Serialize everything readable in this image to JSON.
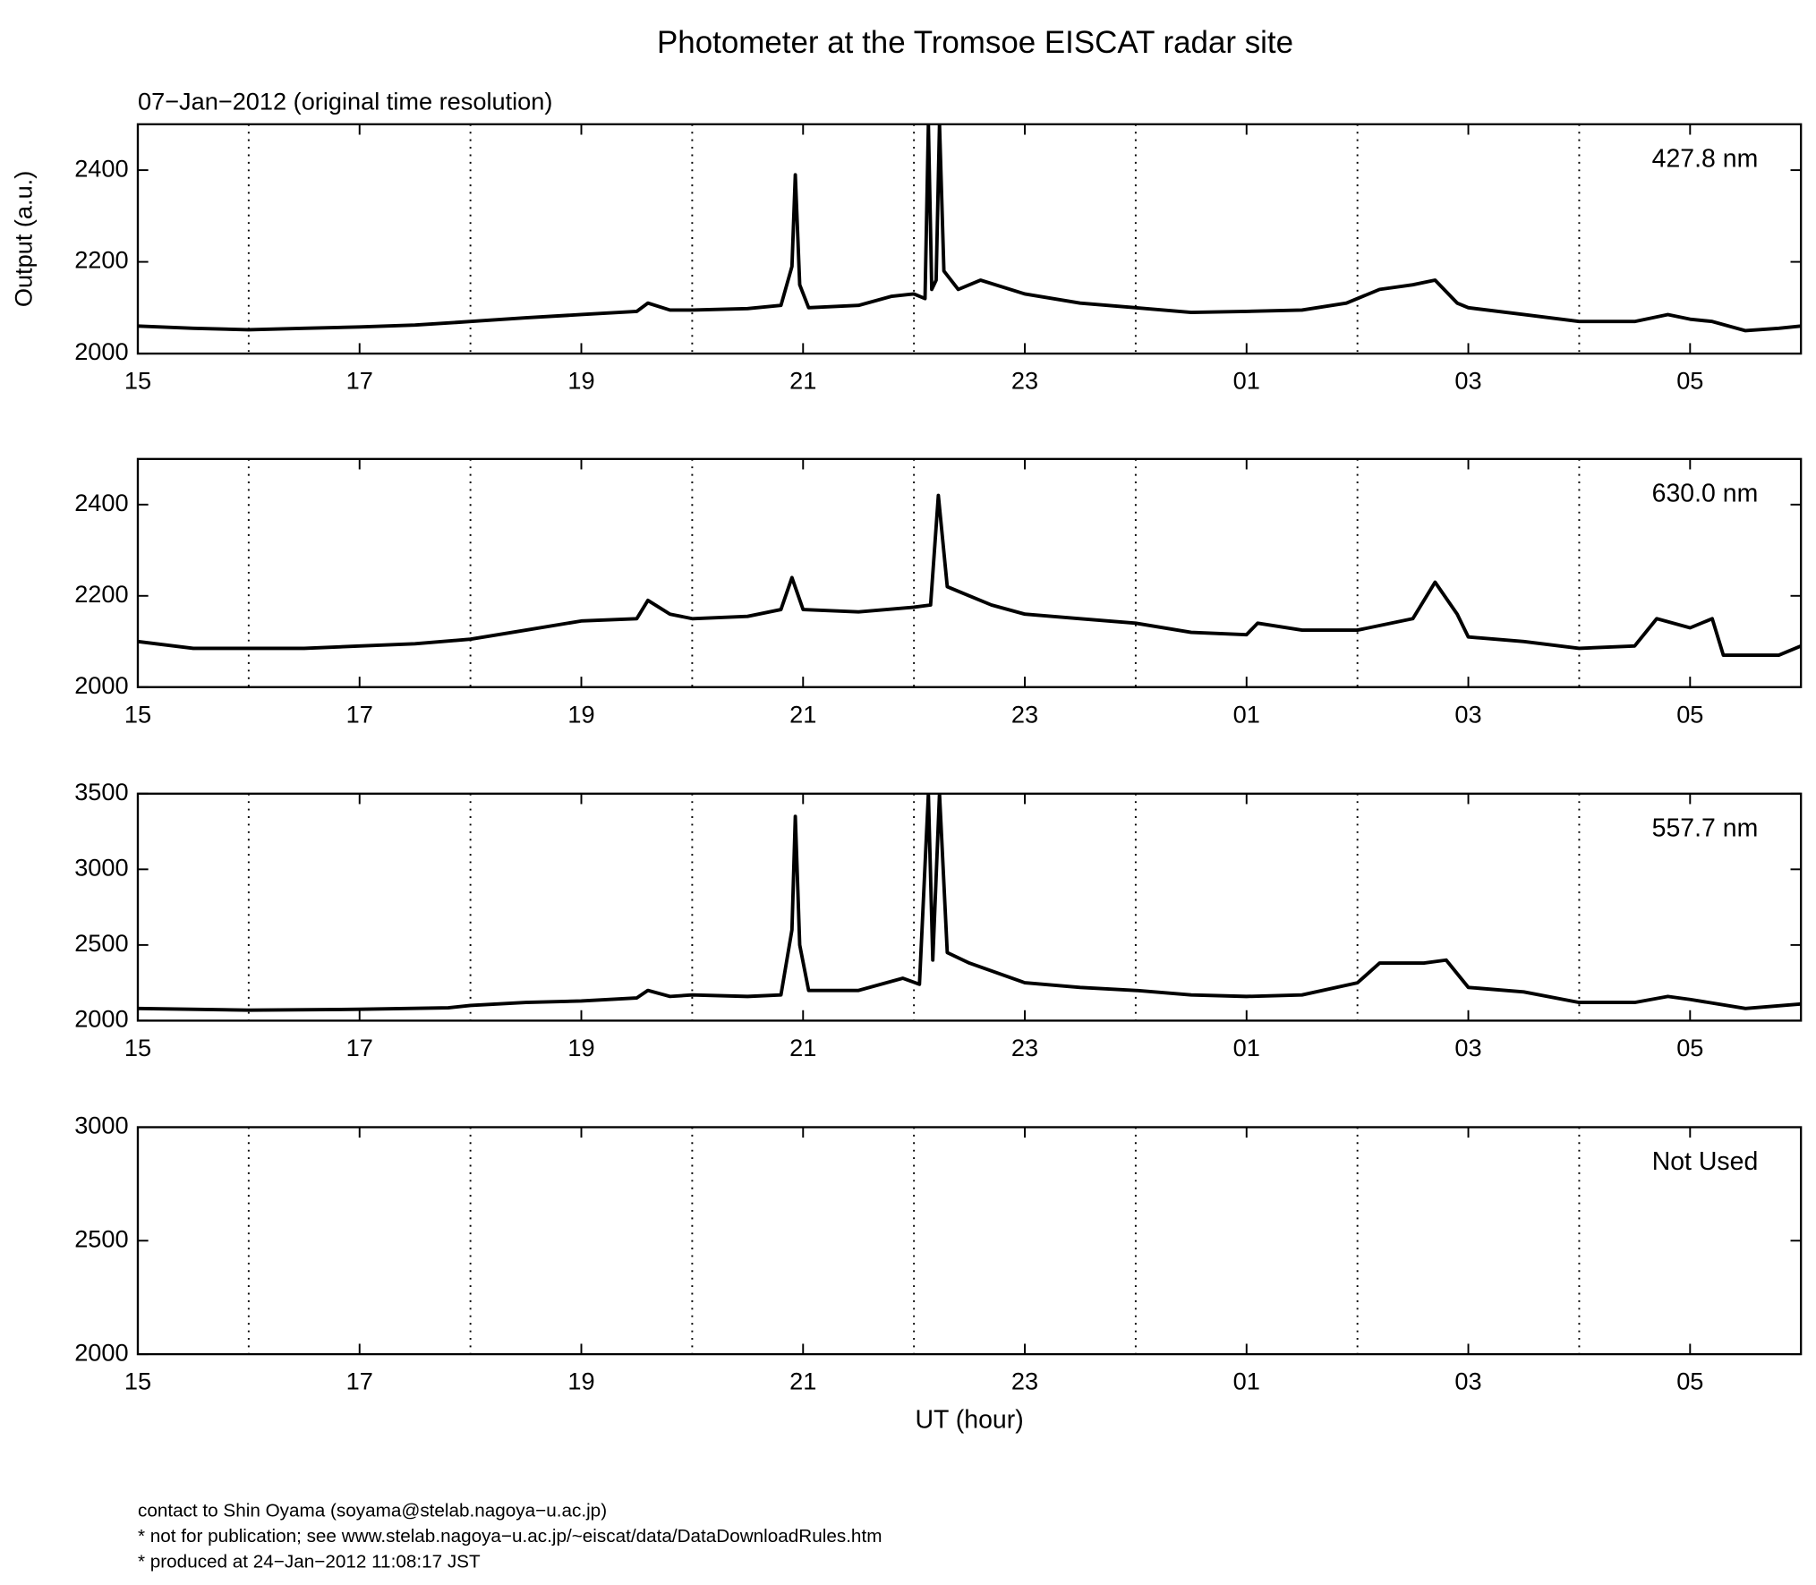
{
  "title": "Photometer at the Tromsoe EISCAT radar site",
  "subtitle": "07−Jan−2012 (original time resolution)",
  "footer": [
    "contact to Shin Oyama (soyama@stelab.nagoya−u.ac.jp)",
    "* not for publication; see www.stelab.nagoya−u.ac.jp/~eiscat/data/DataDownloadRules.htm",
    "* produced at 24−Jan−2012 11:08:17 JST"
  ],
  "chart_data": [
    {
      "type": "line",
      "ylabel": "Output (a.u.)",
      "annotation": "427.8 nm",
      "xlim": [
        15,
        30
      ],
      "ylim": [
        2000,
        2500
      ],
      "yticks": [
        2000,
        2200,
        2400
      ],
      "xticks": [
        15,
        17,
        19,
        21,
        23,
        {
          "value": 25,
          "label": "01"
        },
        {
          "value": 27,
          "label": "03"
        },
        {
          "value": 29,
          "label": "05"
        }
      ],
      "x_grid": [
        16,
        18,
        20,
        22,
        24,
        26,
        28
      ],
      "series": [
        {
          "color": "#000000",
          "x": [
            15,
            15.5,
            16,
            16.5,
            17,
            17.5,
            18,
            18.5,
            19,
            19.5,
            19.6,
            19.8,
            20,
            20.5,
            20.8,
            20.9,
            20.93,
            20.97,
            21.05,
            21.5,
            21.8,
            22,
            22.1,
            22.13,
            22.16,
            22.2,
            22.23,
            22.27,
            22.4,
            22.6,
            23,
            23.5,
            24,
            24.5,
            25,
            25.5,
            25.9,
            26.2,
            26.5,
            26.7,
            26.9,
            27,
            27.5,
            28,
            28.5,
            28.8,
            29,
            29.2,
            29.5,
            29.8,
            30
          ],
          "values": [
            2060,
            2055,
            2052,
            2055,
            2058,
            2062,
            2070,
            2078,
            2085,
            2092,
            2110,
            2095,
            2095,
            2098,
            2105,
            2190,
            2390,
            2150,
            2100,
            2105,
            2125,
            2130,
            2120,
            2500,
            2140,
            2160,
            2500,
            2180,
            2140,
            2160,
            2130,
            2110,
            2100,
            2090,
            2092,
            2095,
            2110,
            2140,
            2150,
            2160,
            2110,
            2100,
            2085,
            2070,
            2070,
            2085,
            2075,
            2070,
            2050,
            2055,
            2060
          ]
        }
      ]
    },
    {
      "type": "line",
      "annotation": "630.0 nm",
      "xlim": [
        15,
        30
      ],
      "ylim": [
        2000,
        2500
      ],
      "yticks": [
        2000,
        2200,
        2400
      ],
      "xticks": [
        15,
        17,
        19,
        21,
        23,
        {
          "value": 25,
          "label": "01"
        },
        {
          "value": 27,
          "label": "03"
        },
        {
          "value": 29,
          "label": "05"
        }
      ],
      "x_grid": [
        16,
        18,
        20,
        22,
        24,
        26,
        28
      ],
      "series": [
        {
          "color": "#000000",
          "x": [
            15,
            15.5,
            16,
            16.5,
            17,
            17.5,
            18,
            18.5,
            19,
            19.5,
            19.6,
            19.8,
            20,
            20.5,
            20.8,
            20.9,
            21,
            21.5,
            22,
            22.15,
            22.22,
            22.3,
            22.5,
            22.7,
            23,
            23.5,
            24,
            24.5,
            25,
            25.1,
            25.5,
            26,
            26.5,
            26.7,
            26.9,
            27,
            27.5,
            28,
            28.5,
            28.7,
            29,
            29.2,
            29.3,
            29.8,
            30
          ],
          "values": [
            2100,
            2085,
            2085,
            2085,
            2090,
            2095,
            2105,
            2125,
            2145,
            2150,
            2190,
            2160,
            2150,
            2155,
            2170,
            2240,
            2170,
            2165,
            2175,
            2180,
            2420,
            2220,
            2200,
            2180,
            2160,
            2150,
            2140,
            2120,
            2115,
            2140,
            2125,
            2125,
            2150,
            2230,
            2160,
            2110,
            2100,
            2085,
            2090,
            2150,
            2130,
            2150,
            2070,
            2070,
            2090
          ]
        }
      ]
    },
    {
      "type": "line",
      "annotation": "557.7 nm",
      "xlim": [
        15,
        30
      ],
      "ylim": [
        2000,
        3500
      ],
      "yticks": [
        2000,
        2500,
        3000,
        3500
      ],
      "xticks": [
        15,
        17,
        19,
        21,
        23,
        {
          "value": 25,
          "label": "01"
        },
        {
          "value": 27,
          "label": "03"
        },
        {
          "value": 29,
          "label": "05"
        }
      ],
      "x_grid": [
        16,
        18,
        20,
        22,
        24,
        26,
        28
      ],
      "series": [
        {
          "color": "#000000",
          "x": [
            15,
            16,
            17,
            17.8,
            18,
            18.5,
            19,
            19.5,
            19.6,
            19.8,
            20,
            20.5,
            20.8,
            20.9,
            20.93,
            20.97,
            21.05,
            21.5,
            21.9,
            22.05,
            22.13,
            22.17,
            22.23,
            22.3,
            22.5,
            23,
            23.5,
            24,
            24.5,
            25,
            25.5,
            26,
            26.2,
            26.6,
            26.8,
            27,
            27.5,
            28,
            28.5,
            28.8,
            29,
            29.5,
            30
          ],
          "values": [
            2080,
            2070,
            2075,
            2085,
            2100,
            2120,
            2130,
            2150,
            2200,
            2160,
            2170,
            2160,
            2170,
            2600,
            3350,
            2500,
            2200,
            2200,
            2280,
            2240,
            3500,
            2400,
            3500,
            2450,
            2380,
            2250,
            2220,
            2200,
            2170,
            2160,
            2170,
            2250,
            2380,
            2380,
            2400,
            2220,
            2190,
            2120,
            2120,
            2160,
            2140,
            2080,
            2110
          ]
        }
      ]
    },
    {
      "type": "line",
      "annotation": "Not Used",
      "xlabel": "UT (hour)",
      "xlim": [
        15,
        30
      ],
      "ylim": [
        2000,
        3000
      ],
      "yticks": [
        2000,
        2500,
        3000
      ],
      "xticks": [
        15,
        17,
        19,
        21,
        23,
        {
          "value": 25,
          "label": "01"
        },
        {
          "value": 27,
          "label": "03"
        },
        {
          "value": 29,
          "label": "05"
        }
      ],
      "x_grid": [
        16,
        18,
        20,
        22,
        24,
        26,
        28
      ],
      "series": []
    }
  ]
}
